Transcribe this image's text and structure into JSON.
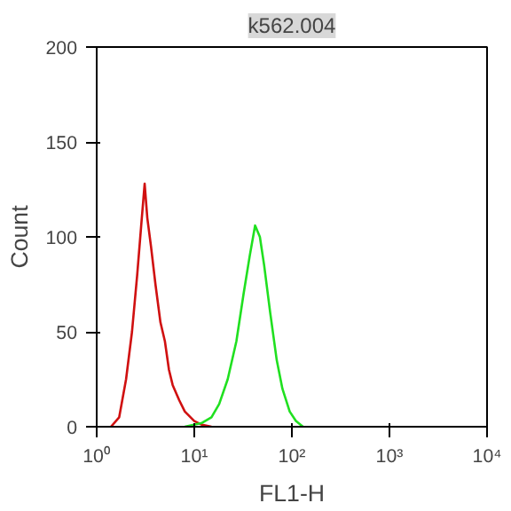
{
  "chart_data": {
    "type": "line",
    "title": "k562.004",
    "xlabel": "FL1-H",
    "ylabel": "Count",
    "log": "x",
    "xlim": [
      1,
      10000
    ],
    "xticks": [
      {
        "value": 1,
        "label": "10⁰"
      },
      {
        "value": 10,
        "label": "10¹"
      },
      {
        "value": 100,
        "label": "10²"
      },
      {
        "value": 1000,
        "label": "10³"
      },
      {
        "value": 10000,
        "label": "10⁴"
      }
    ],
    "ylim": [
      0,
      200
    ],
    "yticks": [
      0,
      50,
      100,
      150,
      200
    ],
    "grid": false,
    "series": [
      {
        "color": "#d01010",
        "x": [
          1.4,
          1.7,
          2.0,
          2.3,
          2.6,
          2.9,
          3.1,
          3.3,
          3.6,
          4.0,
          4.5,
          5.0,
          5.5,
          6.0,
          7,
          8,
          10,
          12,
          15
        ],
        "values": [
          0,
          5,
          25,
          50,
          80,
          110,
          128,
          110,
          95,
          75,
          55,
          45,
          30,
          22,
          14,
          8,
          3,
          1,
          0
        ]
      },
      {
        "color": "#20e020",
        "x": [
          8,
          12,
          15,
          18,
          22,
          27,
          32,
          37,
          42,
          47,
          52,
          60,
          70,
          80,
          95,
          110,
          130
        ],
        "values": [
          0,
          2,
          5,
          12,
          25,
          45,
          70,
          90,
          106,
          100,
          85,
          60,
          35,
          20,
          8,
          3,
          0
        ]
      }
    ]
  }
}
